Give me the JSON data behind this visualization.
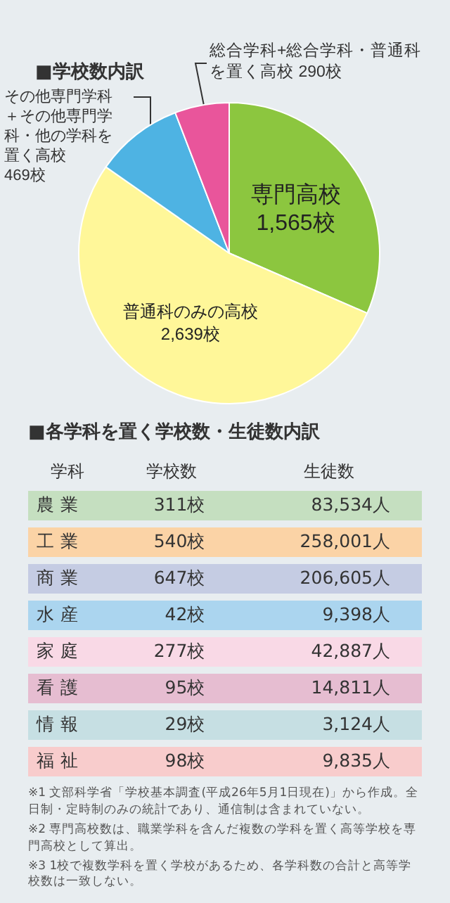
{
  "chart_data": [
    {
      "type": "pie",
      "title": "■学校数内訳",
      "categories": [
        "専門高校",
        "普通科のみの高校",
        "その他専門学科＋その他専門学科・他の学科を置く高校",
        "総合学科+総合学科・普通科を置く高校"
      ],
      "values": [
        1565,
        2639,
        469,
        290
      ],
      "value_labels": [
        "1,565校",
        "2,639校",
        "469校",
        "290校"
      ],
      "colors": [
        "#8cc63f",
        "#fff799",
        "#4eb3e3",
        "#e9559b"
      ],
      "legend": false
    },
    {
      "type": "other",
      "title": "■各学科を置く学校数・生徒数内訳",
      "ylabel": "学科",
      "categories": [
        "農 業",
        "工 業",
        "商 業",
        "水 産",
        "家 庭",
        "看 護",
        "情 報",
        "福 祉"
      ],
      "series": [
        {
          "name": "学校数",
          "values": [
            311,
            540,
            647,
            42,
            277,
            95,
            29,
            98
          ],
          "colors": [
            "#c5dfc0",
            "#fbd3a6",
            "#c5cce3",
            "#abd5ef",
            "#f9d9e6",
            "#e6bdd1",
            "#c6dfe3",
            "#f8cccc"
          ],
          "value_labels": [
            "311校",
            "540校",
            "647校",
            "42校",
            "277校",
            "95校",
            "29校",
            "98校"
          ]
        },
        {
          "name": "生徒数",
          "values": [
            83534,
            258001,
            206605,
            9398,
            42887,
            14811,
            3124,
            9835
          ],
          "colors": [
            "#c5dfc0",
            "#fbd3a6",
            "#c5cce3",
            "#abd5ef",
            "#f9d9e6",
            "#e6bdd1",
            "#c6dfe3",
            "#f8cccc"
          ],
          "value_labels": [
            "83,534人",
            "258,001人",
            "206,605人",
            "9,398人",
            "42,887人",
            "14,811人",
            "3,124人",
            "9,835人"
          ]
        }
      ],
      "annotations": [
        "※1 文部科学省「学校基本調査(平成26年5月1日現在)」から作成。全日制・定時制のみの統計であり、通信制は含まれていない。",
        "※2 専門高校数は、職業学科を含んだ複数の学科を置く高等学校を専門高校として算出。",
        "※3 1校で複数学科を置く学校があるため、各学科数の合計と高等学校数は一致しない。"
      ]
    }
  ]
}
